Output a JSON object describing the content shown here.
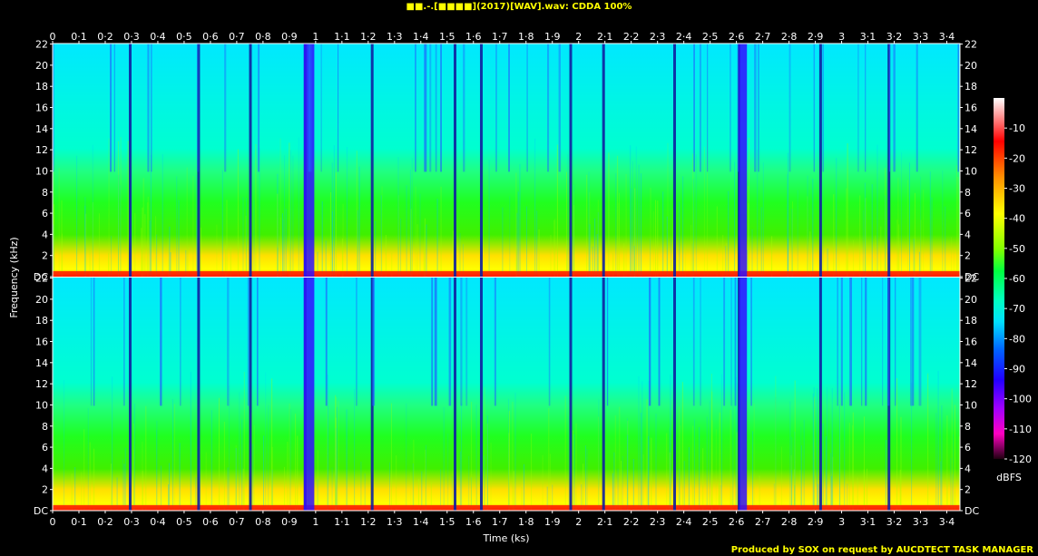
{
  "chart_data": {
    "type": "heatmap",
    "title": "■■.-.[■■■■](2017)[WAV].wav: CDDA 100%",
    "xlabel": "Time (ks)",
    "ylabel": "Frequency (kHz)",
    "colorbar_label": "dBFS",
    "credit": "Produced by SOX on request by AUCDTECT TASK MANAGER",
    "x_range": [
      0,
      3.45
    ],
    "y_range": [
      0,
      22.05
    ],
    "x_ticks": [
      "0",
      "0·1",
      "0·2",
      "0·3",
      "0·4",
      "0·5",
      "0·6",
      "0·7",
      "0·8",
      "0·9",
      "1",
      "1·1",
      "1·2",
      "1·3",
      "1·4",
      "1·5",
      "1·6",
      "1·7",
      "1·8",
      "1·9",
      "2",
      "2·1",
      "2·2",
      "2·3",
      "2·4",
      "2·5",
      "2·6",
      "2·7",
      "2·8",
      "2·9",
      "3",
      "3·1",
      "3·2",
      "3·3",
      "3·4"
    ],
    "x_tick_values": [
      0,
      0.1,
      0.2,
      0.3,
      0.4,
      0.5,
      0.6,
      0.7,
      0.8,
      0.9,
      1.0,
      1.1,
      1.2,
      1.3,
      1.4,
      1.5,
      1.6,
      1.7,
      1.8,
      1.9,
      2.0,
      2.1,
      2.2,
      2.3,
      2.4,
      2.5,
      2.6,
      2.7,
      2.8,
      2.9,
      3.0,
      3.1,
      3.2,
      3.3,
      3.4
    ],
    "y_ticks": [
      "DC",
      "2",
      "4",
      "6",
      "8",
      "10",
      "12",
      "14",
      "16",
      "18",
      "20",
      "22"
    ],
    "y_tick_values": [
      0,
      2,
      4,
      6,
      8,
      10,
      12,
      14,
      16,
      18,
      20,
      22
    ],
    "channels": 2,
    "colorbar_ticks": [
      "-10",
      "-20",
      "-30",
      "-40",
      "-50",
      "-60",
      "-70",
      "-80",
      "-90",
      "-100",
      "-110",
      "-120"
    ],
    "colorbar_tick_values": [
      -10,
      -20,
      -30,
      -40,
      -50,
      -60,
      -70,
      -80,
      -90,
      -100,
      -110,
      -120
    ],
    "colorbar_range": [
      -120,
      0
    ],
    "track_boundaries_ks": [
      0.295,
      0.555,
      0.752,
      0.96,
      1.215,
      1.53,
      1.63,
      1.97,
      2.095,
      2.365,
      2.61,
      2.92,
      3.18
    ],
    "quiet_bands_ks": [
      [
        0.955,
        0.995
      ],
      [
        2.61,
        2.64
      ]
    ],
    "colors": {
      "background": "#000000",
      "text": "#ffffff",
      "title": "#ffff00"
    }
  }
}
